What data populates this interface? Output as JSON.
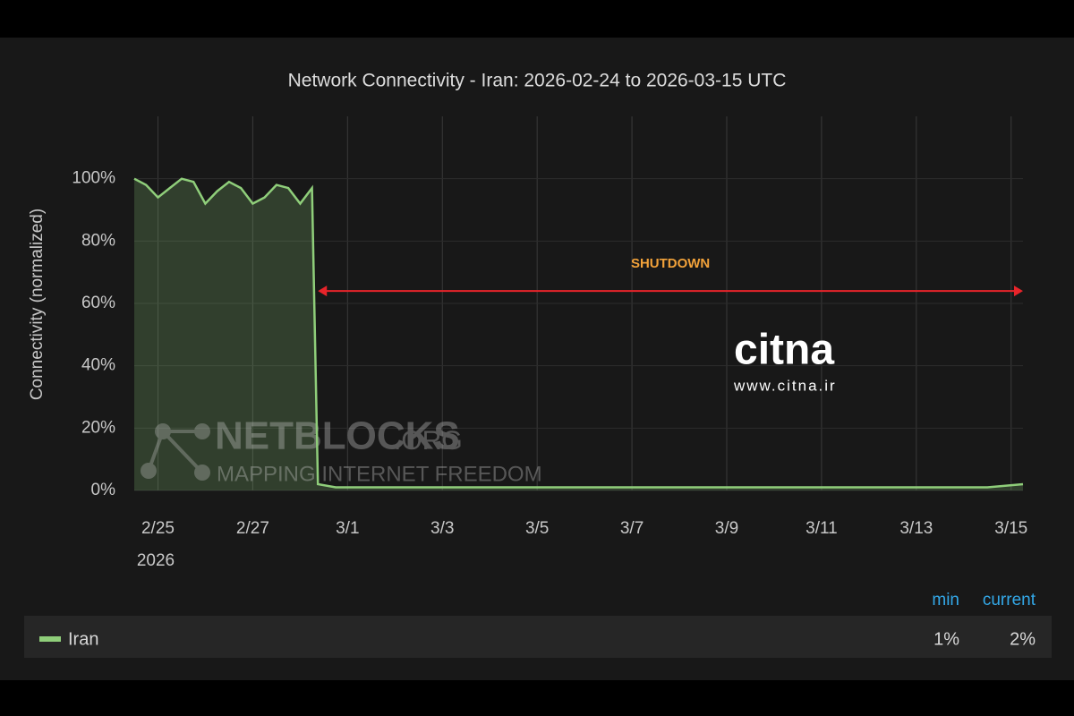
{
  "chart_data": {
    "type": "line",
    "title": "Network Connectivity - Iran: 2026-02-24 to 2026-03-15 UTC",
    "y_label": "Connectivity (normalized)",
    "x_year_label": "2026",
    "x": [
      "2026-02-24T12:00",
      "2026-02-24T18:00",
      "2026-02-25T00:00",
      "2026-02-25T06:00",
      "2026-02-25T12:00",
      "2026-02-25T18:00",
      "2026-02-26T00:00",
      "2026-02-26T06:00",
      "2026-02-26T12:00",
      "2026-02-26T18:00",
      "2026-02-27T00:00",
      "2026-02-27T06:00",
      "2026-02-27T12:00",
      "2026-02-27T18:00",
      "2026-02-28T00:00",
      "2026-02-28T06:00",
      "2026-02-28T09:00",
      "2026-02-28T18:00",
      "2026-03-01T12:00",
      "2026-03-02T12:00",
      "2026-03-03T12:00",
      "2026-03-04T12:00",
      "2026-03-05T12:00",
      "2026-03-06T12:00",
      "2026-03-07T12:00",
      "2026-03-08T12:00",
      "2026-03-09T12:00",
      "2026-03-10T12:00",
      "2026-03-11T12:00",
      "2026-03-12T12:00",
      "2026-03-13T12:00",
      "2026-03-14T12:00",
      "2026-03-15T06:00"
    ],
    "series": [
      {
        "name": "Iran",
        "color": "#8fce7a",
        "values": [
          100,
          98,
          94,
          97,
          100,
          99,
          92,
          96,
          99,
          97,
          92,
          94,
          98,
          97,
          92,
          97,
          2,
          1,
          1,
          1,
          1,
          1,
          1,
          1,
          1,
          1,
          1,
          1,
          1,
          1,
          1,
          1,
          2
        ]
      }
    ],
    "xlim": [
      "2026-02-24T12:00",
      "2026-03-15T06:00"
    ],
    "xticks": [
      {
        "value": "2026-02-25",
        "label": "2/25"
      },
      {
        "value": "2026-02-27",
        "label": "2/27"
      },
      {
        "value": "2026-03-01",
        "label": "3/1"
      },
      {
        "value": "2026-03-03",
        "label": "3/3"
      },
      {
        "value": "2026-03-05",
        "label": "3/5"
      },
      {
        "value": "2026-03-07",
        "label": "3/7"
      },
      {
        "value": "2026-03-09",
        "label": "3/9"
      },
      {
        "value": "2026-03-11",
        "label": "3/11"
      },
      {
        "value": "2026-03-13",
        "label": "3/13"
      },
      {
        "value": "2026-03-15",
        "label": "3/15"
      }
    ],
    "ylim": [
      0,
      120
    ],
    "yticks": [
      {
        "value": 0,
        "label": "0%"
      },
      {
        "value": 20,
        "label": "20%"
      },
      {
        "value": 40,
        "label": "40%"
      },
      {
        "value": 60,
        "label": "60%"
      },
      {
        "value": 80,
        "label": "80%"
      },
      {
        "value": 100,
        "label": "100%"
      }
    ],
    "grid": true,
    "annotation": {
      "text": "SHUTDOWN",
      "x_start": "2026-02-28T09:00",
      "x_end": "2026-03-15T06:00",
      "y": 64
    },
    "legend_stats": {
      "headers": [
        "min",
        "current"
      ],
      "values": [
        1,
        2
      ],
      "value_labels": [
        "1%",
        "2%"
      ]
    },
    "watermarks": {
      "netblocks": "NETBLOCKS",
      "netblocks_suffix": ".ORG",
      "netblocks_tagline": "MAPPING INTERNET FREEDOM",
      "citna": "citna",
      "citna_url": "www.citna.ir"
    }
  }
}
